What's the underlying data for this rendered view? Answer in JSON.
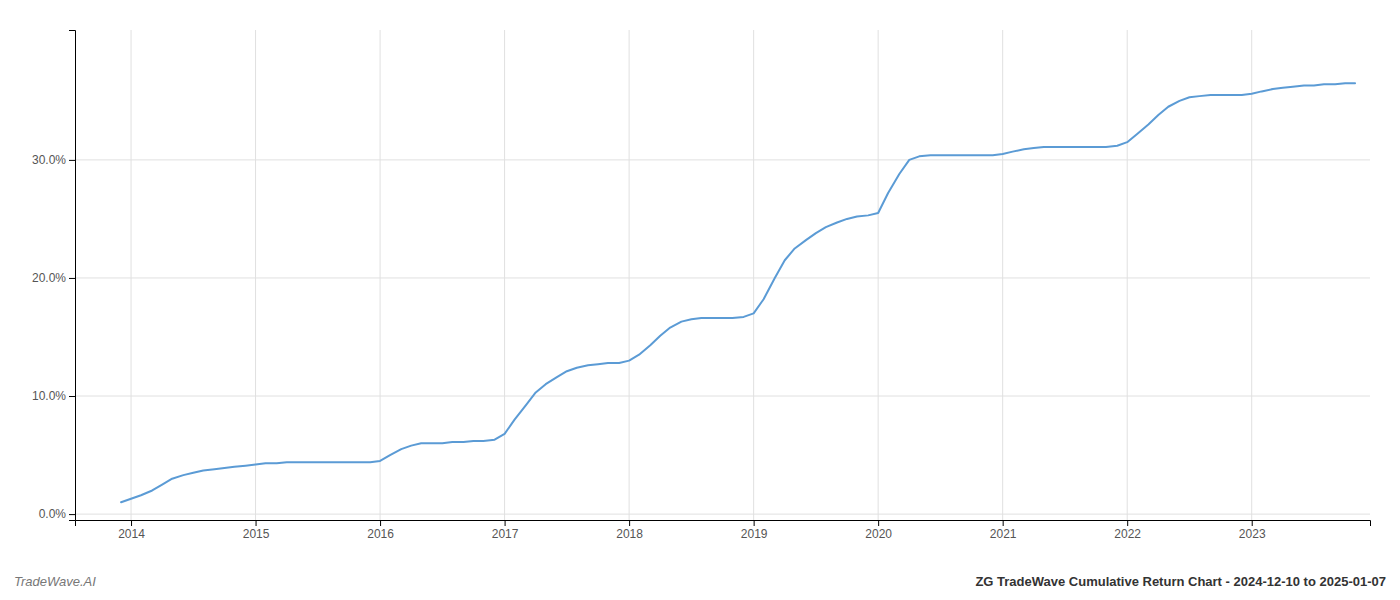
{
  "chart_data": {
    "type": "line",
    "title": "ZG TradeWave Cumulative Return Chart - 2024-12-10 to 2025-01-07",
    "annotations": [
      "TradeWave.AI"
    ],
    "color": "#5b9bd5",
    "grid": true,
    "xlim": [
      2013.55,
      2023.95
    ],
    "xticks": [
      2014,
      2015,
      2016,
      2017,
      2018,
      2019,
      2020,
      2021,
      2022,
      2023
    ],
    "ylim": [
      -0.005,
      0.41
    ],
    "yticks": [
      {
        "value": 0.0,
        "label": "0.0%"
      },
      {
        "value": 0.1,
        "label": "10.0%"
      },
      {
        "value": 0.2,
        "label": "20.0%"
      },
      {
        "value": 0.3,
        "label": "30.0%"
      }
    ],
    "x": [
      2013.92,
      2014.0,
      2014.08,
      2014.17,
      2014.25,
      2014.33,
      2014.42,
      2014.5,
      2014.58,
      2014.67,
      2014.75,
      2014.83,
      2014.92,
      2015.0,
      2015.08,
      2015.17,
      2015.25,
      2015.33,
      2015.42,
      2015.5,
      2015.58,
      2015.67,
      2015.75,
      2015.83,
      2015.92,
      2016.0,
      2016.08,
      2016.17,
      2016.25,
      2016.33,
      2016.42,
      2016.5,
      2016.58,
      2016.67,
      2016.75,
      2016.83,
      2016.92,
      2017.0,
      2017.08,
      2017.17,
      2017.25,
      2017.33,
      2017.42,
      2017.5,
      2017.58,
      2017.67,
      2017.75,
      2017.83,
      2017.92,
      2018.0,
      2018.08,
      2018.17,
      2018.25,
      2018.33,
      2018.42,
      2018.5,
      2018.58,
      2018.67,
      2018.75,
      2018.83,
      2018.92,
      2019.0,
      2019.08,
      2019.17,
      2019.25,
      2019.33,
      2019.42,
      2019.5,
      2019.58,
      2019.67,
      2019.75,
      2019.83,
      2019.92,
      2020.0,
      2020.08,
      2020.17,
      2020.25,
      2020.33,
      2020.42,
      2020.5,
      2020.58,
      2020.67,
      2020.75,
      2020.83,
      2020.92,
      2021.0,
      2021.08,
      2021.17,
      2021.25,
      2021.33,
      2021.42,
      2021.5,
      2021.58,
      2021.67,
      2021.75,
      2021.83,
      2021.92,
      2022.0,
      2022.08,
      2022.17,
      2022.25,
      2022.33,
      2022.42,
      2022.5,
      2022.58,
      2022.67,
      2022.75,
      2022.83,
      2022.92,
      2023.0,
      2023.08,
      2023.17,
      2023.25,
      2023.33,
      2023.42,
      2023.5,
      2023.58,
      2023.67,
      2023.75,
      2023.83
    ],
    "values": [
      0.01,
      0.013,
      0.016,
      0.02,
      0.025,
      0.03,
      0.033,
      0.035,
      0.037,
      0.038,
      0.039,
      0.04,
      0.041,
      0.042,
      0.043,
      0.043,
      0.044,
      0.044,
      0.044,
      0.044,
      0.044,
      0.044,
      0.044,
      0.044,
      0.044,
      0.045,
      0.05,
      0.055,
      0.058,
      0.06,
      0.06,
      0.06,
      0.061,
      0.061,
      0.062,
      0.062,
      0.063,
      0.068,
      0.08,
      0.092,
      0.103,
      0.11,
      0.116,
      0.121,
      0.124,
      0.126,
      0.127,
      0.128,
      0.128,
      0.13,
      0.135,
      0.143,
      0.151,
      0.158,
      0.163,
      0.165,
      0.166,
      0.166,
      0.166,
      0.166,
      0.167,
      0.17,
      0.182,
      0.2,
      0.215,
      0.225,
      0.232,
      0.238,
      0.243,
      0.247,
      0.25,
      0.252,
      0.253,
      0.255,
      0.272,
      0.288,
      0.3,
      0.303,
      0.304,
      0.304,
      0.304,
      0.304,
      0.304,
      0.304,
      0.304,
      0.305,
      0.307,
      0.309,
      0.31,
      0.311,
      0.311,
      0.311,
      0.311,
      0.311,
      0.311,
      0.311,
      0.312,
      0.315,
      0.322,
      0.33,
      0.338,
      0.345,
      0.35,
      0.353,
      0.354,
      0.355,
      0.355,
      0.355,
      0.355,
      0.356,
      0.358,
      0.36,
      0.361,
      0.362,
      0.363,
      0.363,
      0.364,
      0.364,
      0.365,
      0.365
    ]
  }
}
